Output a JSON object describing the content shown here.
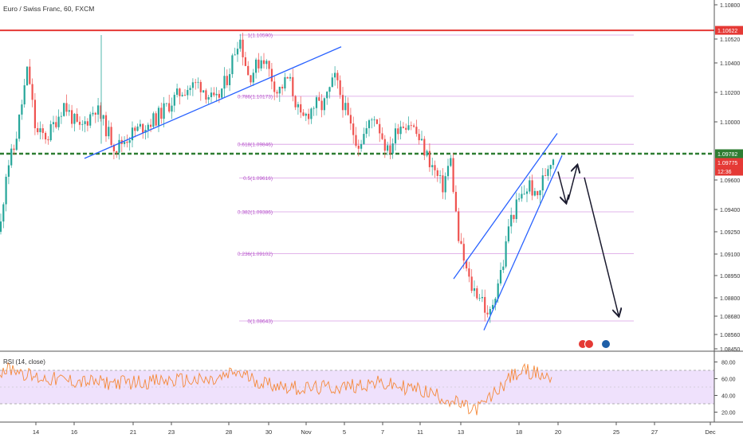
{
  "header": {
    "symbol_title": "Euro / Swiss Franc, 60, FXCM"
  },
  "chart_data": {
    "type": "candlestick",
    "title": "Euro / Swiss Franc, 60, FXCM",
    "price_axis": {
      "range": [
        1.0845,
        1.1085
      ],
      "ticks": [
        "1.10800",
        "1.10520",
        "1.10400",
        "1.10200",
        "1.10000",
        "1.09600",
        "1.09400",
        "1.09250",
        "1.09100",
        "1.08950",
        "1.08800",
        "1.08680",
        "1.08560",
        "1.08450"
      ]
    },
    "time_axis": {
      "labels": [
        "14",
        "16",
        "21",
        "23",
        "28",
        "30",
        "Nov",
        "5",
        "7",
        "11",
        "13",
        "18",
        "20",
        "25",
        "27",
        "Dec"
      ]
    },
    "price_labels": [
      {
        "name": "resistance",
        "text": "1.10622",
        "value": 1.10622,
        "color": "#e53935"
      },
      {
        "name": "last-close",
        "text": "1.09782",
        "value": 1.09782,
        "color": "#2e7d32"
      },
      {
        "name": "bid",
        "text": "1.09775",
        "value": 1.09775,
        "color": "#e53935"
      },
      {
        "name": "countdown",
        "text": "12:36",
        "value": 1.0966,
        "color": "#e53935"
      }
    ],
    "fib_levels": [
      {
        "text": "1(1.10590)",
        "value": 1.1059
      },
      {
        "text": "0.786(1.10173)",
        "value": 1.10173
      },
      {
        "text": "0.618(1.09846)",
        "value": 1.09846
      },
      {
        "text": "0.5(1.09616)",
        "value": 1.09616
      },
      {
        "text": "0.382(1.09386)",
        "value": 1.09386
      },
      {
        "text": "0.236(1.09102)",
        "value": 1.09102
      },
      {
        "text": "0(1.08643)",
        "value": 1.08643
      }
    ],
    "horizontal_lines": [
      {
        "name": "resistance-line",
        "value": 1.10622,
        "color": "#e53935",
        "style": "solid"
      },
      {
        "name": "support-line",
        "value": 1.09782,
        "color": "#2e7d32",
        "style": "dashed"
      }
    ],
    "rsi": {
      "label": "RSI (14, close)",
      "ticks": [
        "80.00",
        "60.00",
        "40.00",
        "20.00"
      ],
      "range": [
        10,
        85
      ],
      "upper": 70,
      "lower": 30,
      "series_color": "#f5893a"
    },
    "colors": {
      "up": "#26a69a",
      "down": "#ef5350",
      "trendline": "#2962ff",
      "fib": "#c873d9",
      "arrow": "#1a1a2e"
    }
  }
}
